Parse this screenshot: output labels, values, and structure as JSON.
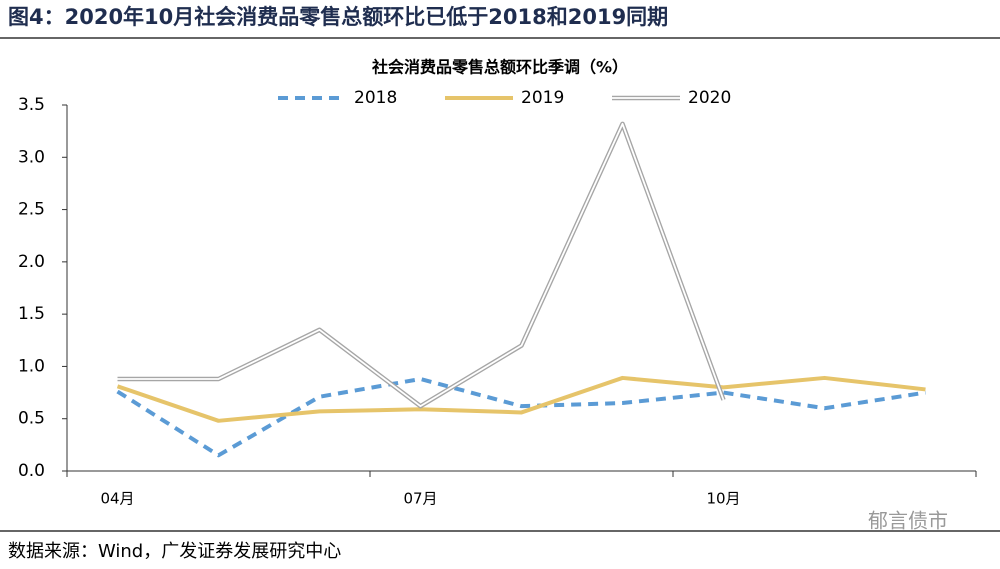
{
  "header": {
    "title": "图4：2020年10月社会消费品零售总额环比已低于2018和2019同期"
  },
  "chart_data": {
    "type": "line",
    "title": "社会消费品零售总额环比季调（%）",
    "categories": [
      "04月",
      null,
      null,
      "07月",
      null,
      null,
      "10月",
      null,
      null
    ],
    "series": [
      {
        "name": "2018",
        "color": "#5b9bd5",
        "dash": true,
        "values": [
          0.76,
          0.15,
          0.71,
          0.88,
          0.62,
          0.65,
          0.75,
          0.6,
          0.75
        ]
      },
      {
        "name": "2019",
        "color": "#e6c46a",
        "dash": false,
        "values": [
          0.81,
          0.48,
          0.57,
          0.59,
          0.56,
          0.89,
          0.8,
          0.89,
          0.78
        ]
      },
      {
        "name": "2020",
        "color": "#a6a6a6",
        "double": true,
        "values": [
          0.88,
          0.88,
          1.35,
          0.62,
          1.2,
          3.32,
          0.68,
          null,
          null
        ]
      }
    ],
    "ylim": [
      0,
      3.5
    ],
    "yticks": [
      {
        "value": 0,
        "label": "0.0"
      },
      {
        "value": 0.5,
        "label": "0.5"
      },
      {
        "value": 1,
        "label": "1.0"
      },
      {
        "value": 1.5,
        "label": "1.5"
      },
      {
        "value": 2,
        "label": "2.0"
      },
      {
        "value": 2.5,
        "label": "2.5"
      },
      {
        "value": 3,
        "label": "3.0"
      },
      {
        "value": 3.5,
        "label": "3.5"
      }
    ],
    "legend": "top"
  },
  "footer": {
    "source": "数据来源：Wind，广发证券发展研究中心",
    "watermark": "郁言债市"
  }
}
